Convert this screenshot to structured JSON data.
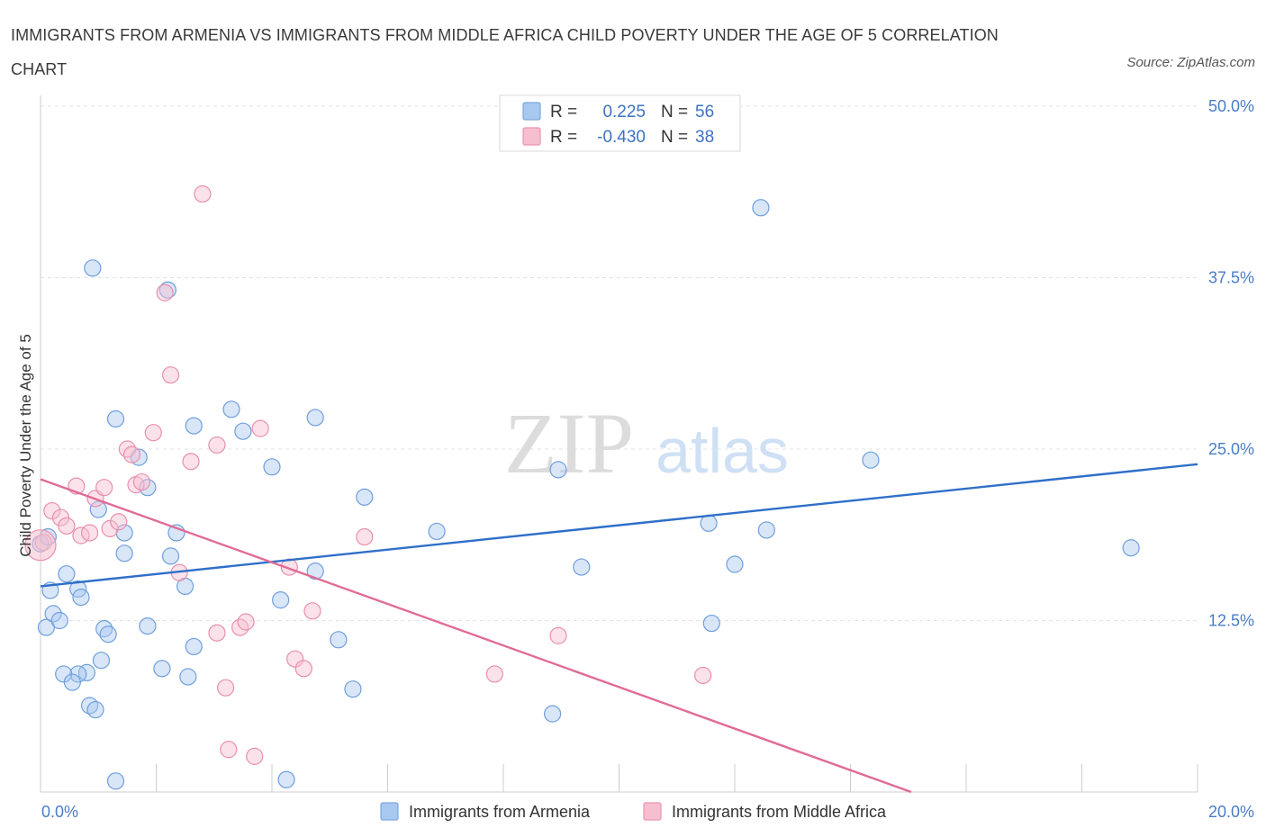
{
  "title": "IMMIGRANTS FROM ARMENIA VS IMMIGRANTS FROM MIDDLE AFRICA CHILD POVERTY UNDER THE AGE OF 5 CORRELATION CHART",
  "source": "Source: ZipAtlas.com",
  "watermark": {
    "zip": "ZIP",
    "atlas": "atlas"
  },
  "legend": [
    {
      "r_label": "R =",
      "r_value": "0.225",
      "n_label": "N =",
      "n_value": "56",
      "color": "#a9c8f0",
      "stroke": "#7da7df"
    },
    {
      "r_label": "R =",
      "r_value": "-0.430",
      "n_label": "N =",
      "n_value": "38",
      "color": "#f6bfd0",
      "stroke": "#eb94b0"
    }
  ],
  "chart_data": {
    "type": "scatter",
    "xlabel": "",
    "ylabel": "Child Poverty Under the Age of 5",
    "xlim": [
      0,
      20
    ],
    "ylim": [
      0,
      50
    ],
    "x_tick_labels": [
      {
        "value": 0,
        "label": "0.0%"
      },
      {
        "value": 20,
        "label": "20.0%"
      }
    ],
    "y_tick_labels": [
      {
        "value": 12.5,
        "label": "12.5%"
      },
      {
        "value": 25,
        "label": "25.0%"
      },
      {
        "value": 37.5,
        "label": "37.5%"
      },
      {
        "value": 50,
        "label": "50.0%"
      }
    ],
    "grid": true,
    "legend_position": "top-center",
    "series": [
      {
        "name": "Immigrants from Armenia",
        "color": "#a9c8f0",
        "stroke": "#6f9fdc",
        "trend_color": "#2f6fc9",
        "trend": {
          "x": [
            0,
            20
          ],
          "y": [
            15.0,
            23.9
          ]
        },
        "points": [
          [
            0.0,
            18.1
          ],
          [
            0.13,
            18.6
          ],
          [
            0.1,
            12.0
          ],
          [
            0.17,
            14.7
          ],
          [
            0.22,
            13.0
          ],
          [
            0.33,
            12.5
          ],
          [
            0.45,
            15.9
          ],
          [
            0.65,
            14.8
          ],
          [
            0.7,
            14.2
          ],
          [
            0.9,
            38.2
          ],
          [
            1.0,
            20.6
          ],
          [
            1.1,
            11.9
          ],
          [
            1.17,
            11.5
          ],
          [
            1.3,
            27.2
          ],
          [
            1.45,
            17.4
          ],
          [
            1.45,
            18.9
          ],
          [
            1.7,
            24.4
          ],
          [
            1.85,
            22.2
          ],
          [
            1.85,
            12.1
          ],
          [
            2.2,
            36.6
          ],
          [
            2.25,
            17.2
          ],
          [
            2.35,
            18.9
          ],
          [
            2.5,
            15.0
          ],
          [
            2.65,
            26.7
          ],
          [
            2.65,
            10.6
          ],
          [
            3.3,
            27.9
          ],
          [
            3.5,
            26.3
          ],
          [
            4.0,
            23.7
          ],
          [
            4.15,
            14.0
          ],
          [
            4.75,
            16.1
          ],
          [
            4.75,
            27.3
          ],
          [
            5.15,
            11.1
          ],
          [
            5.4,
            7.5
          ],
          [
            5.6,
            21.5
          ],
          [
            6.85,
            19.0
          ],
          [
            8.95,
            23.5
          ],
          [
            9.35,
            16.4
          ],
          [
            8.85,
            5.7
          ],
          [
            11.55,
            19.6
          ],
          [
            11.6,
            12.3
          ],
          [
            12.0,
            16.6
          ],
          [
            12.45,
            42.6
          ],
          [
            12.55,
            19.1
          ],
          [
            14.35,
            24.2
          ],
          [
            18.85,
            17.8
          ],
          [
            0.8,
            8.7
          ],
          [
            0.65,
            8.6
          ],
          [
            0.4,
            8.6
          ],
          [
            0.55,
            8.0
          ],
          [
            0.85,
            6.3
          ],
          [
            0.95,
            6.0
          ],
          [
            1.05,
            9.6
          ],
          [
            1.3,
            0.8
          ],
          [
            2.1,
            9.0
          ],
          [
            2.55,
            8.4
          ],
          [
            4.25,
            0.9
          ]
        ]
      },
      {
        "name": "Immigrants from Middle Africa",
        "color": "#f6bfd0",
        "stroke": "#e98fad",
        "trend_color": "#e06b97",
        "trend": {
          "x": [
            0,
            15.05
          ],
          "y": [
            22.8,
            0.0
          ]
        },
        "points": [
          [
            0.05,
            18.2
          ],
          [
            0.2,
            20.5
          ],
          [
            0.35,
            20.0
          ],
          [
            0.45,
            19.4
          ],
          [
            0.62,
            22.3
          ],
          [
            0.7,
            18.7
          ],
          [
            0.85,
            18.9
          ],
          [
            0.95,
            21.4
          ],
          [
            1.1,
            22.2
          ],
          [
            1.2,
            19.2
          ],
          [
            1.35,
            19.7
          ],
          [
            1.5,
            25.0
          ],
          [
            1.58,
            24.6
          ],
          [
            1.65,
            22.4
          ],
          [
            1.75,
            22.6
          ],
          [
            1.95,
            26.2
          ],
          [
            2.15,
            36.4
          ],
          [
            2.25,
            30.4
          ],
          [
            2.4,
            16.0
          ],
          [
            2.6,
            24.1
          ],
          [
            2.8,
            43.6
          ],
          [
            3.05,
            11.6
          ],
          [
            3.05,
            25.3
          ],
          [
            3.2,
            7.6
          ],
          [
            3.25,
            3.1
          ],
          [
            3.45,
            12.0
          ],
          [
            3.55,
            12.4
          ],
          [
            3.7,
            2.6
          ],
          [
            3.8,
            26.5
          ],
          [
            4.3,
            16.4
          ],
          [
            4.4,
            9.7
          ],
          [
            4.55,
            9.0
          ],
          [
            4.7,
            13.2
          ],
          [
            5.6,
            18.6
          ],
          [
            7.85,
            8.6
          ],
          [
            8.95,
            11.4
          ],
          [
            11.45,
            8.5
          ],
          [
            0.0,
            18.0
          ]
        ]
      }
    ]
  },
  "bottom_legend": [
    {
      "label": "Immigrants from Armenia",
      "color": "#a9c8f0",
      "stroke": "#7da7df"
    },
    {
      "label": "Immigrants from Middle Africa",
      "color": "#f6bfd0",
      "stroke": "#eb94b0"
    }
  ]
}
